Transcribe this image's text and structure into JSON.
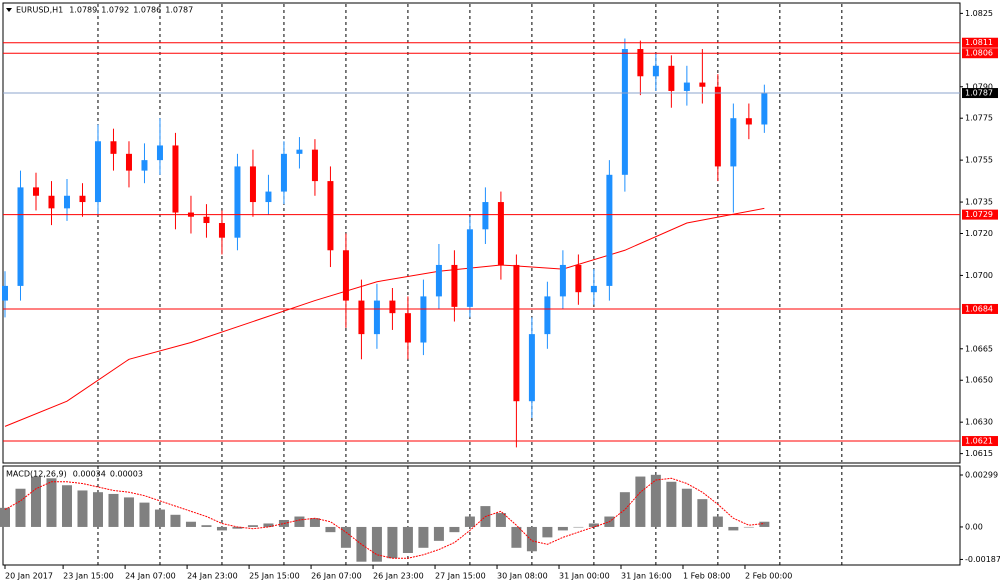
{
  "chart_data": [
    {
      "type": "candlestick",
      "title": "EURUSD,H1",
      "header_values": [
        1.0789,
        1.0792,
        1.0786,
        1.0787
      ],
      "up_color": "#1e90ff",
      "down_color": "#ff0000",
      "x": [
        0,
        4,
        8,
        12,
        16,
        20,
        24,
        28,
        32,
        36,
        40,
        44,
        48,
        52,
        56,
        60,
        64,
        68,
        72,
        76,
        80,
        84,
        88,
        92,
        96,
        100,
        104,
        108,
        112,
        116,
        120,
        124,
        128,
        132,
        136,
        140,
        144,
        148,
        152,
        156,
        160,
        164,
        168,
        172,
        176,
        180,
        184,
        188,
        192,
        196
      ],
      "open": [
        1.0688,
        1.0695,
        1.0742,
        1.0738,
        1.0732,
        1.0738,
        1.0735,
        1.0764,
        1.0758,
        1.075,
        1.0755,
        1.0762,
        1.073,
        1.0728,
        1.0725,
        1.0718,
        1.0752,
        1.0735,
        1.074,
        1.0758,
        1.076,
        1.0745,
        1.0712,
        1.0688,
        1.0672,
        1.0688,
        1.0682,
        1.0668,
        1.069,
        1.0705,
        1.0685,
        1.0722,
        1.0735,
        1.0705,
        1.064,
        1.0672,
        1.069,
        1.0705,
        1.0692,
        1.0695,
        1.0748,
        1.0808,
        1.0795,
        1.08,
        1.0788,
        1.0792,
        1.079,
        1.0752,
        1.0775,
        1.0772
      ],
      "high": [
        1.0702,
        1.075,
        1.0749,
        1.0745,
        1.0746,
        1.0744,
        1.0772,
        1.077,
        1.0764,
        1.0763,
        1.0775,
        1.0768,
        1.0738,
        1.0734,
        1.0731,
        1.0758,
        1.076,
        1.0748,
        1.0764,
        1.0766,
        1.0765,
        1.0752,
        1.072,
        1.0698,
        1.0696,
        1.0694,
        1.069,
        1.0698,
        1.0715,
        1.0712,
        1.0728,
        1.0742,
        1.074,
        1.071,
        1.068,
        1.0697,
        1.0712,
        1.071,
        1.0703,
        1.0755,
        1.0813,
        1.0812,
        1.0806,
        1.0805,
        1.08,
        1.0808,
        1.0796,
        1.0782,
        1.0782,
        1.0791
      ],
      "low": [
        1.068,
        1.0688,
        1.0731,
        1.0724,
        1.0726,
        1.0728,
        1.0729,
        1.075,
        1.0742,
        1.0744,
        1.0748,
        1.0722,
        1.072,
        1.0718,
        1.071,
        1.0712,
        1.0728,
        1.0729,
        1.0734,
        1.0751,
        1.0738,
        1.0704,
        1.0675,
        1.066,
        1.0665,
        1.0674,
        1.066,
        1.0662,
        1.0684,
        1.0678,
        1.068,
        1.0715,
        1.0698,
        1.0618,
        1.0632,
        1.0665,
        1.0684,
        1.0686,
        1.0686,
        1.0688,
        1.074,
        1.0786,
        1.0788,
        1.078,
        1.0781,
        1.0782,
        1.0745,
        1.073,
        1.0765,
        1.0768
      ],
      "close": [
        1.0695,
        1.0742,
        1.0738,
        1.0732,
        1.0738,
        1.0735,
        1.0764,
        1.0758,
        1.075,
        1.0755,
        1.0762,
        1.073,
        1.0728,
        1.0725,
        1.0718,
        1.0752,
        1.0735,
        1.074,
        1.0758,
        1.076,
        1.0745,
        1.0712,
        1.0688,
        1.0672,
        1.0688,
        1.0682,
        1.0668,
        1.069,
        1.0705,
        1.0685,
        1.0722,
        1.0735,
        1.0705,
        1.064,
        1.0672,
        1.069,
        1.0705,
        1.0692,
        1.0695,
        1.0748,
        1.0808,
        1.0795,
        1.08,
        1.0788,
        1.0792,
        1.079,
        1.0752,
        1.0775,
        1.0772,
        1.0787
      ],
      "ma": {
        "color": "#ff0000",
        "x": [
          0,
          16,
          32,
          48,
          64,
          80,
          96,
          112,
          128,
          144,
          160,
          176,
          196
        ],
        "values": [
          1.0628,
          1.064,
          1.066,
          1.0668,
          1.0678,
          1.0688,
          1.0697,
          1.0702,
          1.0705,
          1.0703,
          1.0712,
          1.0725,
          1.0732
        ]
      },
      "levels": [
        {
          "value": 1.0811,
          "color": "#ff0000"
        },
        {
          "value": 1.0806,
          "color": "#ff0000"
        },
        {
          "value": 1.0729,
          "color": "#ff0000"
        },
        {
          "value": 1.0684,
          "color": "#ff0000"
        },
        {
          "value": 1.0621,
          "color": "#ff0000"
        }
      ],
      "current_price": {
        "value": 1.0787,
        "color": "#8ea4cc"
      },
      "xlim": [
        0,
        246.5
      ],
      "ylim": [
        1.0829,
        1.0611
      ],
      "yticks": [
        1.0825,
        {
          "value": 1.079,
          "label": "1.0790"
        },
        1.0775,
        1.0755,
        1.0735,
        {
          "value": 1.072,
          "label": "1.0720"
        },
        {
          "value": 1.07,
          "label": "1.0700"
        },
        1.0665,
        {
          "value": 1.065,
          "label": "1.0650"
        },
        {
          "value": 1.063,
          "label": "1.0630"
        },
        1.0615
      ]
    },
    {
      "type": "macd",
      "title": "MACD(12,26,9)",
      "header_values": [
        0.00034,
        3e-05
      ],
      "hist_color": "#808080",
      "signal_color": "#ff0000",
      "x": [
        0,
        4,
        8,
        12,
        16,
        20,
        24,
        28,
        32,
        36,
        40,
        44,
        48,
        52,
        56,
        60,
        64,
        68,
        72,
        76,
        80,
        84,
        88,
        92,
        96,
        100,
        104,
        108,
        112,
        116,
        120,
        124,
        128,
        132,
        136,
        140,
        144,
        148,
        152,
        156,
        160,
        164,
        168,
        172,
        176,
        180,
        184,
        188,
        192,
        196
      ],
      "histogram": [
        0.0011,
        0.0022,
        0.0029,
        0.0028,
        0.0024,
        0.0021,
        0.002,
        0.0019,
        0.0017,
        0.0014,
        0.001,
        0.0007,
        0.0003,
        0.0001,
        -0.0002,
        -0.0001,
        0.0001,
        0.0002,
        0.0004,
        0.0006,
        0.0005,
        -0.0003,
        -0.0012,
        -0.002,
        -0.002,
        -0.0018,
        -0.0015,
        -0.0012,
        -0.0008,
        -0.0003,
        0.0006,
        0.0012,
        0.0008,
        -0.0012,
        -0.0014,
        -0.0006,
        -0.0002,
        0.0,
        0.0002,
        0.0006,
        0.002,
        0.0029,
        0.003,
        0.0026,
        0.0022,
        0.0016,
        0.0006,
        -0.0002,
        0.0,
        0.0003
      ],
      "signal": [
        0.001,
        0.0015,
        0.0022,
        0.0026,
        0.0026,
        0.0025,
        0.0023,
        0.0021,
        0.002,
        0.0018,
        0.0015,
        0.0012,
        0.0009,
        0.0006,
        0.0002,
        0.0,
        -0.0001,
        0.0,
        0.0002,
        0.0004,
        0.0005,
        0.0003,
        -0.0003,
        -0.001,
        -0.0016,
        -0.0018,
        -0.0018,
        -0.0016,
        -0.0013,
        -0.0009,
        -0.0002,
        0.0006,
        0.0009,
        0.0001,
        -0.0008,
        -0.001,
        -0.0006,
        -0.0003,
        0.0,
        0.0003,
        0.001,
        0.002,
        0.0027,
        0.0028,
        0.0025,
        0.002,
        0.0013,
        0.0005,
        0.0001,
        0.0002
      ],
      "ylim": [
        0.00345,
        -0.00219
      ],
      "yticks": [
        0.00299,
        {
          "value": 0,
          "label": "0.00"
        },
        -0.00187
      ],
      "xgrid": [
        24,
        40,
        56,
        72,
        88,
        104,
        120,
        136,
        152,
        168,
        184,
        200,
        216
      ],
      "xticks": [
        {
          "value": 0,
          "label": "20 Jan 2017"
        },
        {
          "value": 15,
          "label": "23 Jan 15:00"
        },
        {
          "value": 31,
          "label": "24 Jan 07:00"
        },
        {
          "value": 47,
          "label": "24 Jan 23:00"
        },
        {
          "value": 63,
          "label": "25 Jan 15:00"
        },
        {
          "value": 79,
          "label": "26 Jan 07:00"
        },
        {
          "value": 95,
          "label": "26 Jan 23:00"
        },
        {
          "value": 111,
          "label": "27 Jan 15:00"
        },
        {
          "value": 127,
          "label": "30 Jan 08:00"
        },
        {
          "value": 143,
          "label": "31 Jan 00:00"
        },
        {
          "value": 159,
          "label": "31 Jan 16:00"
        },
        {
          "value": 175,
          "label": "1 Feb 08:00"
        },
        {
          "value": 191,
          "label": "2 Feb 00:00"
        }
      ]
    }
  ]
}
